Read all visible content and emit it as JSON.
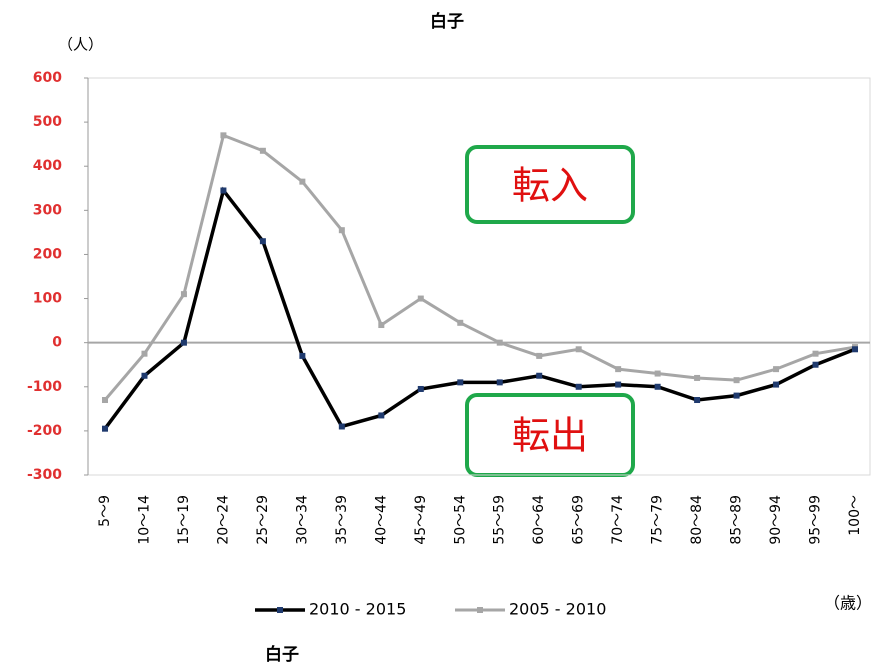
{
  "chart_data": {
    "type": "line",
    "title": "白子",
    "y_unit": "（人）",
    "x_unit": "（歳）",
    "footer": "白子",
    "annotations": [
      "転入",
      "転出"
    ],
    "categories": [
      "5～9",
      "10～14",
      "15～19",
      "20～24",
      "25～29",
      "30～34",
      "35～39",
      "40～44",
      "45～49",
      "50～54",
      "55～59",
      "60～64",
      "65～69",
      "70～74",
      "75～79",
      "80～84",
      "85～89",
      "90～94",
      "95～99",
      "100～"
    ],
    "series": [
      {
        "name": "2010 - 2015",
        "color": "#000000",
        "values": [
          -195,
          -75,
          0,
          345,
          230,
          -30,
          -190,
          -165,
          -105,
          -90,
          -90,
          -75,
          -100,
          -95,
          -100,
          -130,
          -120,
          -95,
          -50,
          -15
        ]
      },
      {
        "name": "2005 - 2010",
        "color": "#a6a6a6",
        "values": [
          -130,
          -25,
          110,
          470,
          435,
          365,
          255,
          40,
          100,
          45,
          0,
          -30,
          -15,
          -60,
          -70,
          -80,
          -85,
          -60,
          -25,
          -10
        ]
      }
    ],
    "ylim": [
      -300,
      600
    ],
    "yticks": [
      -300,
      -200,
      -100,
      0,
      100,
      200,
      300,
      400,
      500,
      600
    ]
  }
}
